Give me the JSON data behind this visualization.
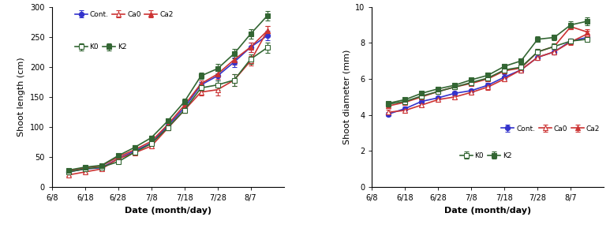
{
  "x_positions": [
    1,
    2,
    3,
    4,
    5,
    6,
    7,
    8,
    9,
    10,
    11,
    12,
    13
  ],
  "x_tick_positions": [
    0,
    2,
    4,
    6,
    8,
    10,
    12,
    14
  ],
  "x_tick_labels": [
    "6/8",
    "6/18",
    "6/28",
    "7/8",
    "7/18",
    "7/28",
    "8/7",
    ""
  ],
  "shoot_length": {
    "Cont.": [
      25,
      30,
      32,
      47,
      60,
      73,
      102,
      132,
      170,
      185,
      208,
      233,
      252
    ],
    "Ca0": [
      20,
      25,
      30,
      47,
      57,
      68,
      98,
      128,
      158,
      162,
      178,
      210,
      260
    ],
    "Ca2": [
      27,
      32,
      35,
      50,
      62,
      76,
      104,
      136,
      172,
      188,
      212,
      233,
      260
    ],
    "K0": [
      25,
      30,
      33,
      42,
      58,
      72,
      99,
      128,
      165,
      170,
      178,
      213,
      232
    ],
    "K2": [
      28,
      33,
      36,
      52,
      66,
      82,
      110,
      142,
      185,
      197,
      222,
      255,
      285
    ]
  },
  "shoot_length_err": {
    "Cont.": [
      2,
      2,
      2,
      3,
      3,
      3,
      4,
      5,
      5,
      8,
      8,
      8,
      8
    ],
    "Ca0": [
      2,
      2,
      2,
      3,
      3,
      3,
      4,
      5,
      5,
      10,
      10,
      8,
      8
    ],
    "Ca2": [
      2,
      2,
      2,
      3,
      3,
      3,
      4,
      5,
      5,
      8,
      8,
      8,
      8
    ],
    "K0": [
      2,
      2,
      2,
      3,
      3,
      3,
      4,
      5,
      5,
      8,
      10,
      8,
      8
    ],
    "K2": [
      2,
      2,
      2,
      3,
      3,
      3,
      4,
      5,
      5,
      8,
      8,
      8,
      8
    ]
  },
  "shoot_diameter": {
    "Cont.": [
      4.05,
      4.35,
      4.75,
      4.95,
      5.2,
      5.35,
      5.65,
      6.1,
      6.5,
      7.2,
      7.5,
      8.1,
      8.3
    ],
    "Ca0": [
      4.15,
      4.25,
      4.55,
      4.85,
      5.0,
      5.25,
      5.55,
      6.0,
      6.5,
      7.2,
      7.5,
      8.05,
      8.5
    ],
    "Ca2": [
      4.5,
      4.7,
      5.0,
      5.3,
      5.55,
      5.75,
      6.0,
      6.45,
      6.6,
      7.5,
      7.8,
      8.9,
      8.6
    ],
    "K0": [
      4.6,
      4.75,
      5.05,
      5.3,
      5.55,
      5.8,
      6.05,
      6.5,
      6.65,
      7.5,
      7.8,
      8.1,
      8.2
    ],
    "K2": [
      4.65,
      4.85,
      5.2,
      5.45,
      5.65,
      5.95,
      6.2,
      6.7,
      7.0,
      8.2,
      8.3,
      9.0,
      9.2
    ]
  },
  "shoot_diameter_err": {
    "Cont.": [
      0.1,
      0.1,
      0.1,
      0.1,
      0.1,
      0.1,
      0.15,
      0.15,
      0.15,
      0.15,
      0.15,
      0.15,
      0.15
    ],
    "Ca0": [
      0.15,
      0.15,
      0.1,
      0.1,
      0.1,
      0.1,
      0.15,
      0.15,
      0.15,
      0.15,
      0.15,
      0.15,
      0.15
    ],
    "Ca2": [
      0.1,
      0.1,
      0.1,
      0.1,
      0.1,
      0.1,
      0.15,
      0.15,
      0.15,
      0.15,
      0.15,
      0.15,
      0.15
    ],
    "K0": [
      0.1,
      0.1,
      0.1,
      0.1,
      0.1,
      0.1,
      0.15,
      0.15,
      0.15,
      0.15,
      0.15,
      0.15,
      0.15
    ],
    "K2": [
      0.1,
      0.1,
      0.1,
      0.1,
      0.1,
      0.1,
      0.15,
      0.15,
      0.15,
      0.15,
      0.15,
      0.2,
      0.2
    ]
  },
  "series_styles": {
    "Cont.": {
      "color": "#3333cc",
      "marker": "o",
      "filled": true
    },
    "Ca0": {
      "color": "#cc3333",
      "marker": "^",
      "filled": false
    },
    "Ca2": {
      "color": "#cc3333",
      "marker": "^",
      "filled": true
    },
    "K0": {
      "color": "#336633",
      "marker": "s",
      "filled": false
    },
    "K2": {
      "color": "#336633",
      "marker": "s",
      "filled": true
    }
  },
  "ylabel_left": "Shoot length (cm)",
  "ylabel_right": "Shoot diameter (mm)",
  "xlabel": "Date (month/day)",
  "ylim_left": [
    0,
    300
  ],
  "ylim_right": [
    0,
    10
  ],
  "yticks_left": [
    0,
    50,
    100,
    150,
    200,
    250,
    300
  ],
  "yticks_right": [
    0,
    2,
    4,
    6,
    8,
    10
  ],
  "legend_order": [
    "Cont.",
    "Ca0",
    "Ca2",
    "K0",
    "K2"
  ]
}
